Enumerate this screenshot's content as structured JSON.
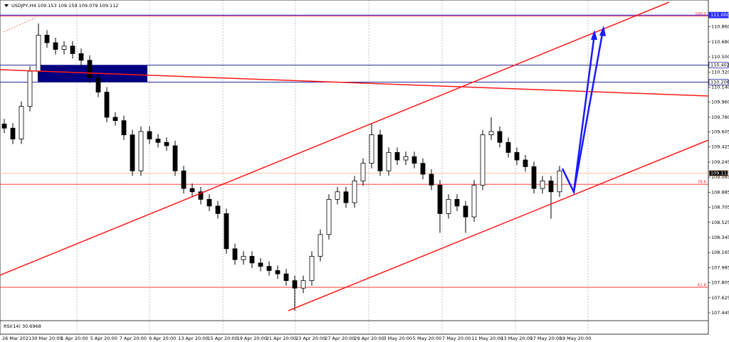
{
  "chart_data": {
    "type": "candlestick",
    "title": "USDJPY,H4 109.153 109.159 109.079 109.112",
    "indicator_label": "RSI(14) 30.6968",
    "x_labels": [
      "26 Mar 2021",
      "30 Mar 20:00",
      "1 Apr 20:00",
      "5 Apr 20:00",
      "7 Apr 20:00",
      "9 Apr 20:00",
      "13 Apr 20:00",
      "15 Apr 20:00",
      "19 Apr 20:00",
      "21 Apr 20:00",
      "23 Apr 20:00",
      "27 Apr 20:00",
      "29 Apr 20:00",
      "3 May 20:00",
      "5 May 20:00",
      "7 May 20:00",
      "11 May 20:00",
      "13 May 20:00",
      "17 May 20:00",
      "19 May 20:00"
    ],
    "open": [
      109.7,
      109.65,
      109.52,
      109.91,
      110.33,
      110.76,
      110.67,
      110.59,
      110.63,
      110.54,
      110.46,
      110.25,
      110.08,
      109.78,
      109.74,
      109.57,
      109.14,
      109.61,
      109.52,
      109.48,
      109.44,
      109.14,
      108.93,
      108.89,
      108.8,
      108.72,
      108.63,
      108.21,
      108.08,
      108.12,
      108.04,
      108.0,
      107.95,
      107.91,
      107.83,
      107.74,
      107.83,
      108.12,
      108.38,
      108.8,
      108.89,
      108.76,
      109.02,
      109.23,
      109.57,
      109.14,
      109.36,
      109.27,
      109.31,
      109.23,
      109.1,
      108.97,
      108.63,
      108.8,
      108.72,
      108.59,
      108.97,
      109.57,
      109.61,
      109.48,
      109.36,
      109.27,
      109.19,
      108.93,
      109.02,
      108.89
    ],
    "high": [
      109.76,
      109.71,
      109.97,
      110.39,
      110.9,
      110.82,
      110.73,
      110.69,
      110.69,
      110.6,
      110.52,
      110.31,
      110.14,
      109.84,
      109.8,
      109.63,
      109.67,
      109.67,
      109.58,
      109.54,
      109.5,
      109.2,
      108.99,
      108.95,
      108.86,
      108.78,
      108.69,
      108.27,
      108.18,
      108.18,
      108.1,
      108.06,
      108.01,
      107.97,
      107.89,
      107.89,
      108.18,
      108.44,
      108.86,
      108.95,
      108.95,
      109.08,
      109.29,
      109.7,
      109.63,
      109.42,
      109.42,
      109.37,
      109.37,
      109.29,
      109.16,
      109.03,
      108.86,
      108.86,
      108.78,
      109.03,
      109.63,
      109.78,
      109.67,
      109.54,
      109.42,
      109.33,
      109.25,
      109.08,
      109.08,
      109.2
    ],
    "low": [
      109.59,
      109.46,
      109.46,
      109.85,
      110.27,
      110.61,
      110.53,
      110.53,
      110.48,
      110.4,
      110.19,
      110.02,
      109.72,
      109.68,
      109.51,
      109.08,
      109.08,
      109.46,
      109.42,
      109.38,
      109.08,
      108.87,
      108.83,
      108.74,
      108.66,
      108.57,
      108.15,
      108.02,
      108.02,
      107.98,
      107.94,
      107.89,
      107.85,
      107.77,
      107.47,
      107.68,
      107.77,
      108.06,
      108.32,
      108.74,
      108.7,
      108.7,
      108.96,
      109.17,
      109.08,
      109.08,
      109.21,
      109.21,
      109.17,
      109.04,
      108.91,
      108.4,
      108.57,
      108.66,
      108.4,
      108.53,
      108.91,
      109.51,
      109.42,
      109.3,
      109.21,
      109.13,
      108.87,
      108.87,
      108.57,
      108.83
    ],
    "close": [
      109.65,
      109.52,
      109.91,
      110.33,
      110.76,
      110.67,
      110.59,
      110.63,
      110.54,
      110.46,
      110.25,
      110.08,
      109.78,
      109.74,
      109.57,
      109.14,
      109.61,
      109.52,
      109.48,
      109.44,
      109.14,
      108.93,
      108.89,
      108.8,
      108.72,
      108.63,
      108.21,
      108.08,
      108.12,
      108.04,
      108.0,
      107.95,
      107.91,
      107.83,
      107.74,
      107.83,
      108.12,
      108.38,
      108.8,
      108.89,
      108.76,
      109.02,
      109.23,
      109.57,
      109.14,
      109.36,
      109.27,
      109.31,
      109.23,
      109.1,
      108.97,
      108.63,
      108.8,
      108.72,
      108.59,
      108.97,
      109.57,
      109.61,
      109.48,
      109.36,
      109.27,
      109.19,
      108.93,
      109.02,
      108.89,
      109.14
    ],
    "ylim": [
      107.36,
      111.18
    ],
    "yticks": [
      {
        "value": 110.86,
        "label": "110.860"
      },
      {
        "value": 110.68,
        "label": "110.680"
      },
      {
        "value": 110.5,
        "label": "110.500"
      },
      {
        "value": 110.32,
        "label": "110.320"
      },
      {
        "value": 110.14,
        "label": "110.140"
      },
      {
        "value": 109.96,
        "label": "109.960"
      },
      {
        "value": 109.78,
        "label": "109.780"
      },
      109.605,
      109.425,
      109.245,
      109.065,
      108.885,
      108.705,
      108.525,
      108.345,
      108.165,
      107.985,
      107.805,
      107.625,
      107.445
    ],
    "levels": [
      {
        "value": 111,
        "label": "111.000",
        "color": "#2a2aff",
        "fill": "#2a2aff"
      },
      {
        "value": 110.402,
        "label": "110.402",
        "color": "#2a2a9a",
        "fill": "#ffffff"
      },
      {
        "value": 110.2,
        "label": "110.200",
        "color": "#2a2a9a",
        "fill": "#ffffff"
      },
      {
        "value": 109.112,
        "label": "109.112",
        "color": "#f2c8a8",
        "fill": "#000000"
      }
    ],
    "fib_levels": [
      {
        "value": 110.99,
        "label": "100.0"
      },
      {
        "value": 108.98,
        "label": "78.6"
      },
      {
        "value": 107.75,
        "label": "61.8"
      }
    ],
    "candle_color": "#000000",
    "fib_color": "#ff2020"
  }
}
